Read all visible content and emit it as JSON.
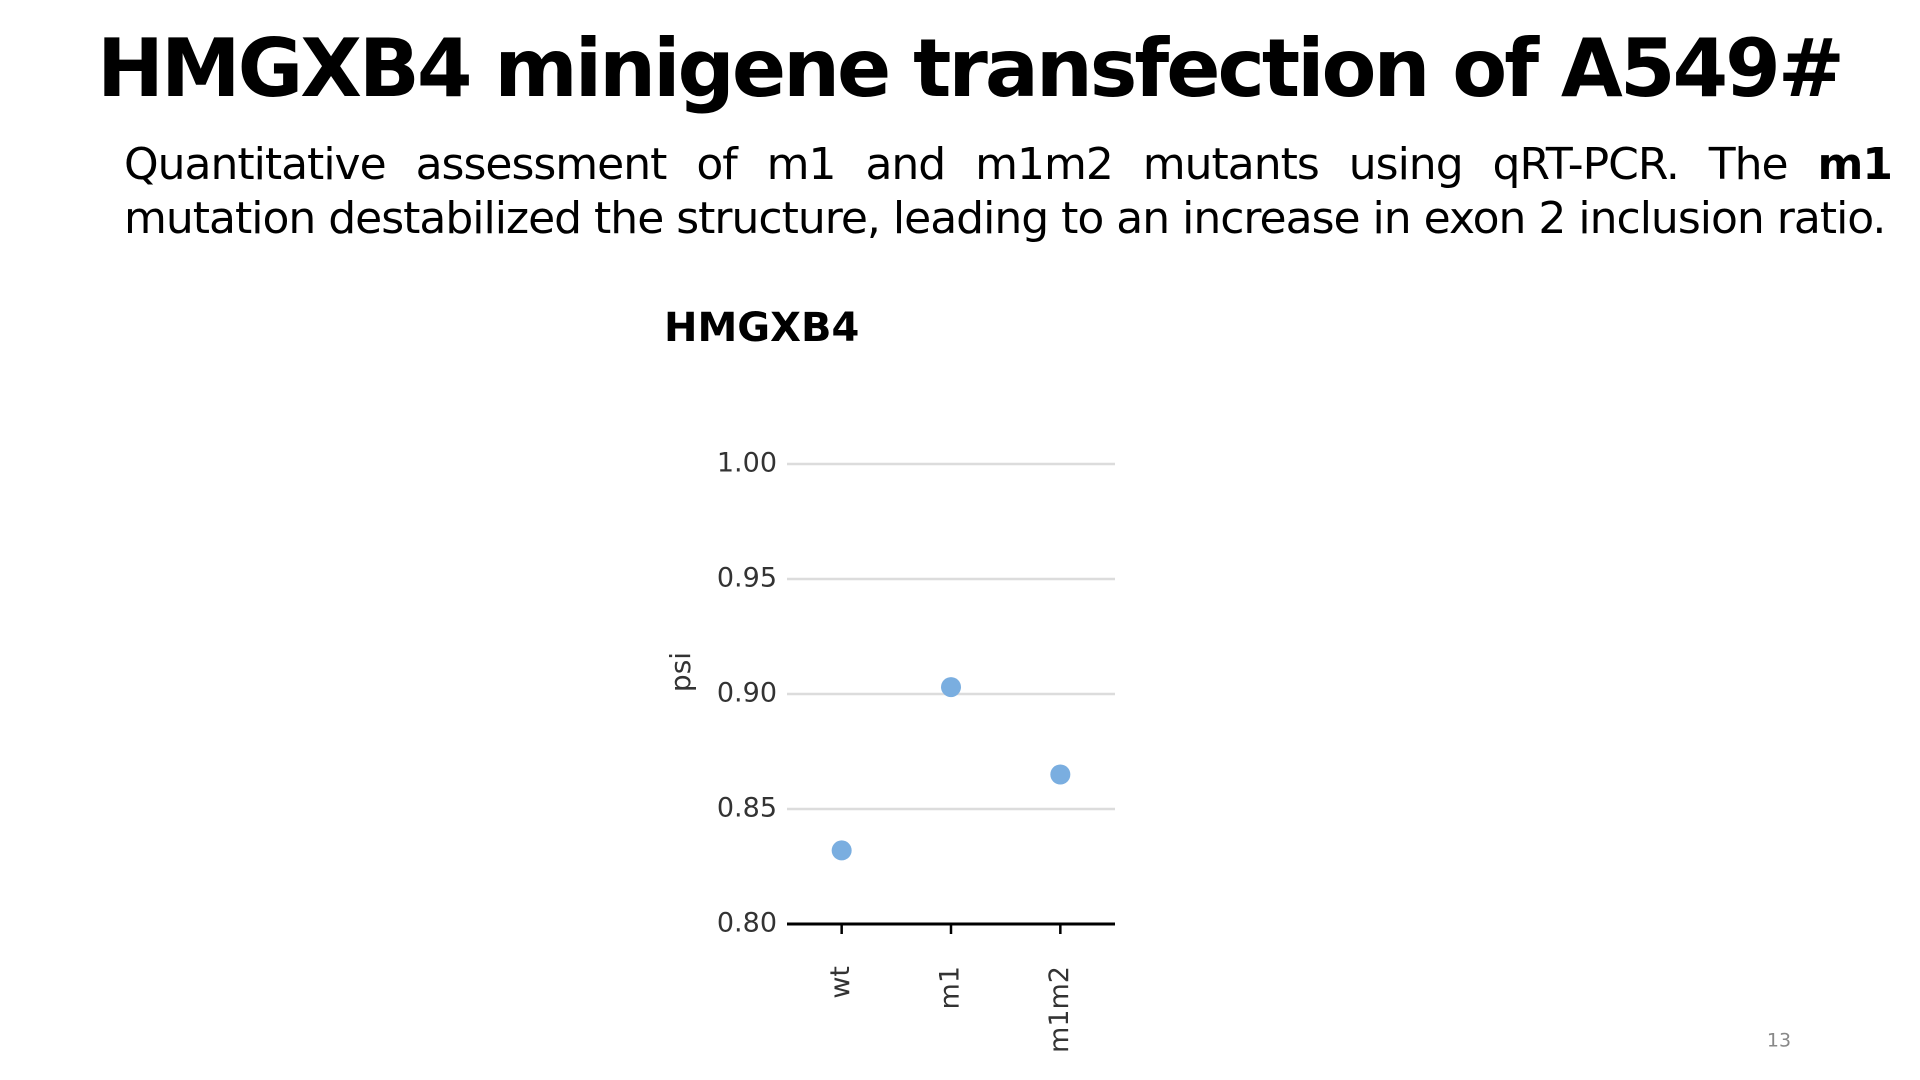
{
  "title": "HMGXB4 minigene transfection of A549#",
  "body_text": [
    "Quantitative assessment of m1 and m1m2 mutants using qRT-PCR. The ",
    "m1",
    " mutation destabilized the structure, leading to an increase in exon 2 inclusion ratio."
  ],
  "page_number": "13",
  "chart_data": {
    "type": "scatter",
    "title": "HMGXB4",
    "y_label": "psi",
    "categories": [
      "wt",
      "m1",
      "m1m2"
    ],
    "values": [
      0.832,
      0.903,
      0.865
    ],
    "color": "#7aaee0",
    "ylim": [
      0.8,
      1.0
    ],
    "yticks": [
      {
        "value": 0.8,
        "label": "0.80"
      },
      {
        "value": 0.85,
        "label": "0.85"
      },
      {
        "value": 0.9,
        "label": "0.90"
      },
      {
        "value": 0.95,
        "label": "0.95"
      },
      {
        "value": 1.0,
        "label": "1.00"
      }
    ],
    "grid": true
  }
}
